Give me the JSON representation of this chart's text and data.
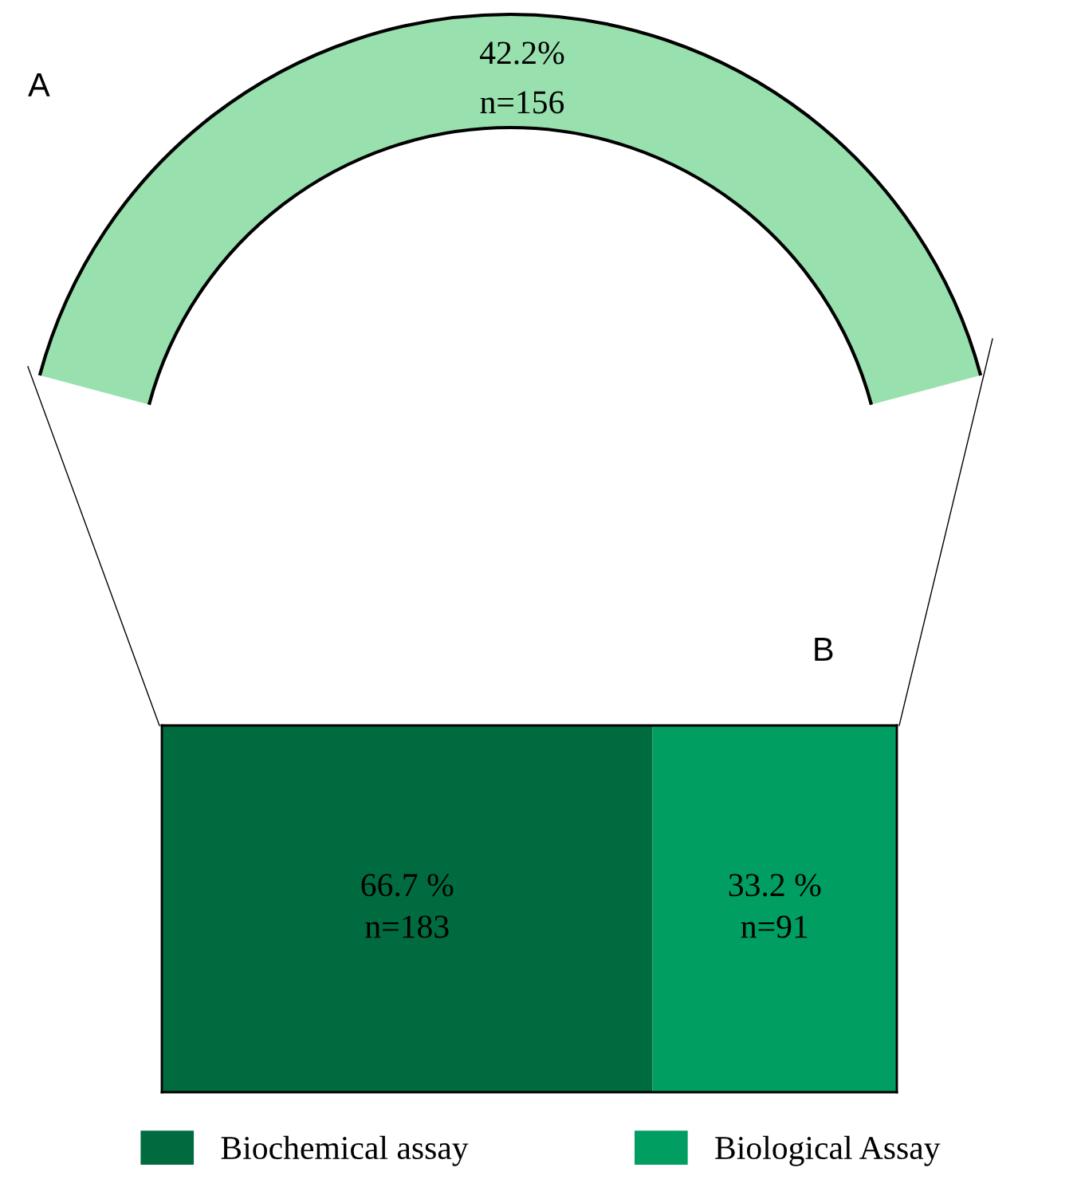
{
  "chart_data": [
    {
      "type": "other",
      "title": "A",
      "color": "#98e0ad",
      "annotations": [
        "42.2%",
        "n=156"
      ]
    },
    {
      "type": "bar",
      "title": "B",
      "orientation": "horizontal",
      "stacked": true,
      "categories": [
        null
      ],
      "legend": "bottom",
      "series": [
        {
          "name": "Biochemical assay",
          "color": "#006b3f",
          "values": [
            66.7
          ],
          "value_labels": [
            "66.7 %\nn=183"
          ]
        },
        {
          "name": "Biological Assay",
          "color": "#009e60",
          "values": [
            33.2
          ],
          "value_labels": [
            "33.2 %\nn=91"
          ]
        }
      ]
    }
  ]
}
